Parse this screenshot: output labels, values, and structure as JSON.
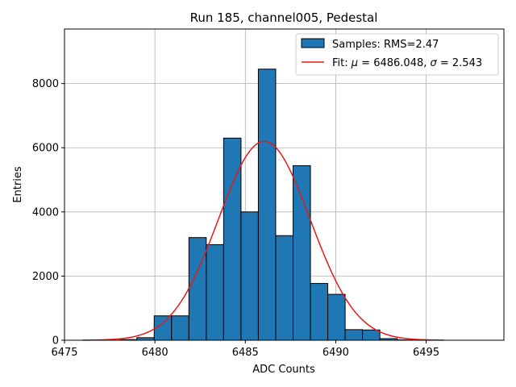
{
  "chart_data": {
    "type": "bar",
    "title": "Run 185, channel005, Pedestal",
    "xlabel": "ADC Counts",
    "ylabel": "Entries",
    "xlim": [
      6475,
      6499.3
    ],
    "ylim": [
      0,
      9700
    ],
    "grid": true,
    "legend_location": "top-right",
    "x_ticks": [
      6475,
      6480,
      6485,
      6490,
      6495
    ],
    "y_ticks": [
      0,
      2000,
      4000,
      6000,
      8000
    ],
    "bin_width": 0.96,
    "bin_edges_start": 6478.0,
    "histogram": {
      "name": "Samples: RMS=2.47",
      "color": "#1f77b4",
      "bins": [
        {
          "x0": 6478.04,
          "count": 20
        },
        {
          "x0": 6479.0,
          "count": 80
        },
        {
          "x0": 6479.96,
          "count": 760
        },
        {
          "x0": 6480.92,
          "count": 760
        },
        {
          "x0": 6481.88,
          "count": 3200
        },
        {
          "x0": 6482.84,
          "count": 2980
        },
        {
          "x0": 6483.8,
          "count": 6300
        },
        {
          "x0": 6484.76,
          "count": 4000
        },
        {
          "x0": 6485.72,
          "count": 8450
        },
        {
          "x0": 6486.68,
          "count": 3260
        },
        {
          "x0": 6487.64,
          "count": 5440
        },
        {
          "x0": 6488.6,
          "count": 1770
        },
        {
          "x0": 6489.56,
          "count": 1430
        },
        {
          "x0": 6490.52,
          "count": 330
        },
        {
          "x0": 6491.48,
          "count": 320
        },
        {
          "x0": 6492.44,
          "count": 50
        },
        {
          "x0": 6493.4,
          "count": 10
        }
      ]
    },
    "fit": {
      "name_prefix": "Fit: ",
      "mu_symbol": "μ",
      "mu_text": " = 6486.048, ",
      "sigma_symbol": "σ",
      "sigma_text": " = 2.543",
      "color": "#e41a1c",
      "mu": 6486.048,
      "sigma": 2.543,
      "amplitude": 6200,
      "x_range": [
        6476.0,
        6496.0
      ]
    }
  }
}
